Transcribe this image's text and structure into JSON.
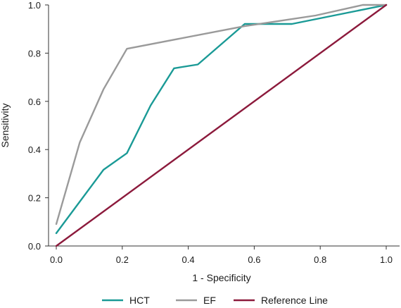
{
  "chart_data": {
    "type": "line",
    "title": "",
    "xlabel": "1 - Specificity",
    "ylabel": "Sensitivity",
    "xlim": [
      0,
      1
    ],
    "ylim": [
      0,
      1
    ],
    "xticks": [
      "0.0",
      "0.2",
      "0.4",
      "0.6",
      "0.8",
      "1.0"
    ],
    "yticks": [
      "0.0",
      "0.2",
      "0.4",
      "0.6",
      "0.8",
      "1.0"
    ],
    "grid": false,
    "legend_position": "bottom",
    "series": [
      {
        "name": "HCT",
        "color": "#1a9a96",
        "x": [
          0.0,
          0.143,
          0.214,
          0.286,
          0.357,
          0.429,
          0.571,
          0.714,
          1.0
        ],
        "y": [
          0.053,
          0.316,
          0.385,
          0.583,
          0.737,
          0.753,
          0.921,
          0.921,
          1.0
        ]
      },
      {
        "name": "EF",
        "color": "#9a9a9a",
        "x": [
          0.0,
          0.071,
          0.143,
          0.214,
          0.571,
          0.786,
          0.929,
          1.0
        ],
        "y": [
          0.091,
          0.429,
          0.65,
          0.818,
          0.912,
          0.956,
          1.0,
          1.0
        ]
      },
      {
        "name": "Reference Line",
        "color": "#8c1a3c",
        "x": [
          0.0,
          1.0
        ],
        "y": [
          0.0,
          1.0
        ]
      }
    ]
  }
}
